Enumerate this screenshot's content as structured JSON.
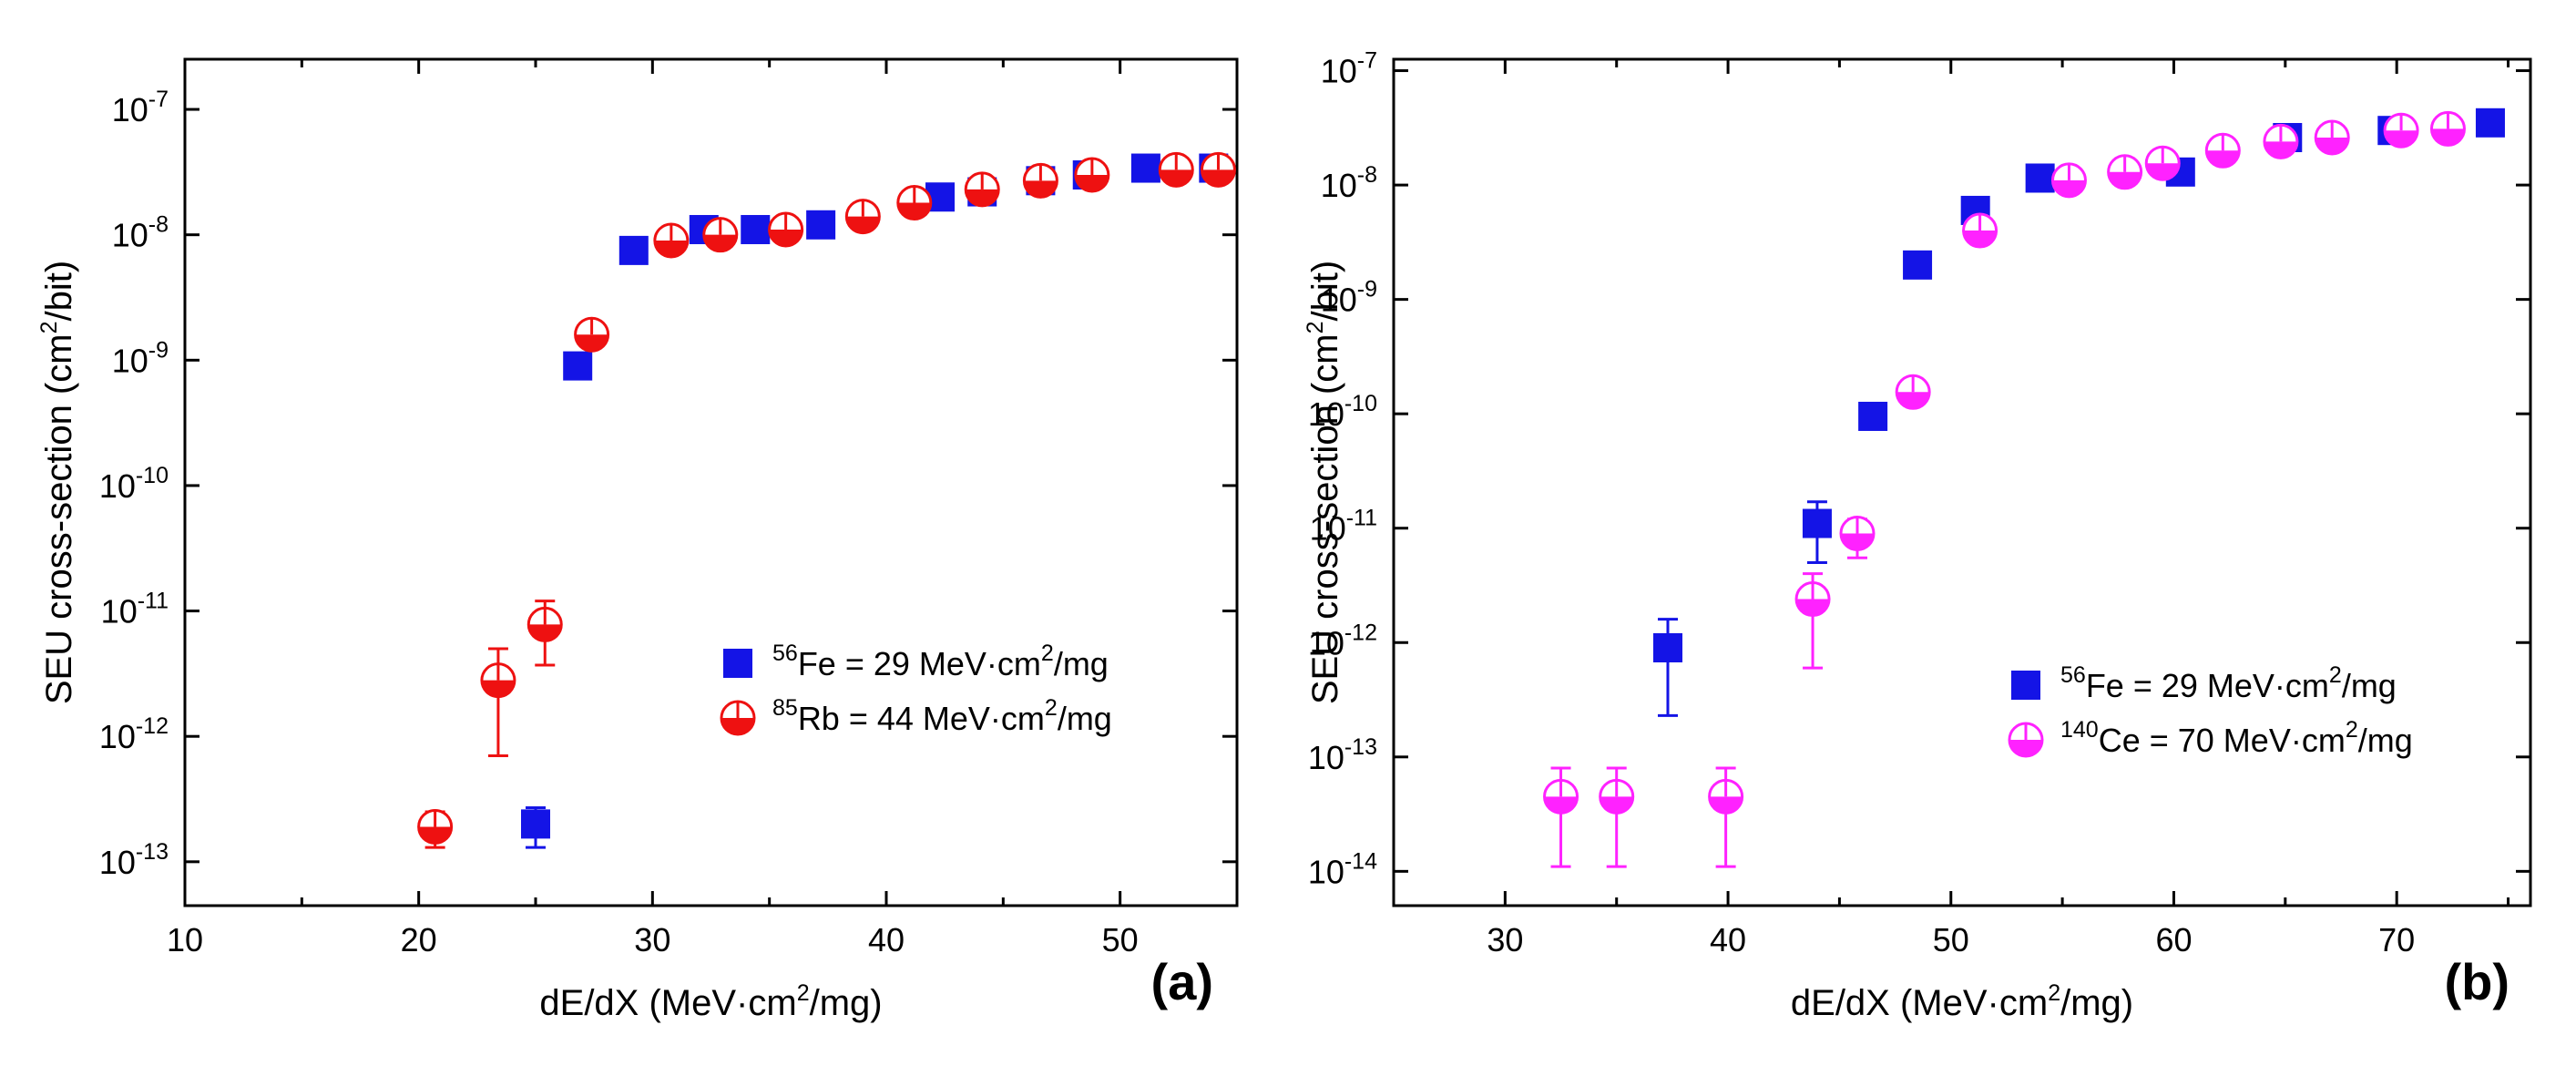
{
  "figure": {
    "panels": [
      "a",
      "b"
    ]
  },
  "chart_data": [
    {
      "type": "scatter",
      "panel_label": "(a)",
      "xlabel": {
        "pre": "dE/dX (MeV·cm",
        "sup": "2",
        "post": "/mg)"
      },
      "ylabel": {
        "pre": "SEU cross-section (cm",
        "sup": "2",
        "post": "/bit)"
      },
      "xlim": [
        10,
        55
      ],
      "ylim_exp": [
        -13.35,
        -6.6
      ],
      "xticks": [
        10,
        20,
        30,
        40,
        50
      ],
      "yticks_exp": [
        -13,
        -12,
        -11,
        -10,
        -9,
        -8,
        -7
      ],
      "log_y": true,
      "legend_position": "right-middle",
      "series": [
        {
          "name": "56Fe",
          "legend": {
            "sup": "56",
            "text": "Fe = 29 MeV·cm",
            "sup2": "2",
            "text2": "/mg"
          },
          "marker": "square",
          "color": "#1414e6",
          "points": [
            {
              "x": 25.0,
              "y": 2e-13,
              "err_low": 1.3e-13,
              "err_high": 2.7e-13
            },
            {
              "x": 26.8,
              "y": 9e-10
            },
            {
              "x": 29.2,
              "y": 7.5e-09
            },
            {
              "x": 32.2,
              "y": 1.1e-08
            },
            {
              "x": 34.4,
              "y": 1.1e-08
            },
            {
              "x": 37.2,
              "y": 1.2e-08
            },
            {
              "x": 42.3,
              "y": 2e-08
            },
            {
              "x": 44.1,
              "y": 2.2e-08
            },
            {
              "x": 46.6,
              "y": 2.7e-08
            },
            {
              "x": 48.6,
              "y": 3e-08
            },
            {
              "x": 51.1,
              "y": 3.4e-08
            },
            {
              "x": 54.0,
              "y": 3.4e-08
            }
          ]
        },
        {
          "name": "85Rb",
          "legend": {
            "sup": "85",
            "text": "Rb = 44 MeV·cm",
            "sup2": "2",
            "text2": "/mg"
          },
          "marker": "half-circle",
          "color": "#ee1111",
          "points": [
            {
              "x": 20.7,
              "y": 1.9e-13,
              "err_low": 1.3e-13,
              "err_high": 2.5e-13
            },
            {
              "x": 23.4,
              "y": 2.8e-12,
              "err_low": 7e-13,
              "err_high": 5e-12
            },
            {
              "x": 25.4,
              "y": 7.8e-12,
              "err_low": 3.7e-12,
              "err_high": 1.2e-11
            },
            {
              "x": 27.4,
              "y": 1.6e-09
            },
            {
              "x": 30.8,
              "y": 9e-09
            },
            {
              "x": 32.9,
              "y": 1e-08
            },
            {
              "x": 35.7,
              "y": 1.1e-08
            },
            {
              "x": 39.0,
              "y": 1.4e-08
            },
            {
              "x": 41.2,
              "y": 1.8e-08
            },
            {
              "x": 44.1,
              "y": 2.3e-08
            },
            {
              "x": 46.6,
              "y": 2.7e-08
            },
            {
              "x": 48.8,
              "y": 3e-08
            },
            {
              "x": 52.4,
              "y": 3.3e-08
            },
            {
              "x": 54.2,
              "y": 3.3e-08
            }
          ]
        }
      ]
    },
    {
      "type": "scatter",
      "panel_label": "(b)",
      "xlabel": {
        "pre": "dE/dX (MeV·cm",
        "sup": "2",
        "post": "/mg)"
      },
      "ylabel": {
        "pre": "SEU cross-section (cm",
        "sup": "2",
        "post": "/bit)"
      },
      "xlim": [
        25,
        76
      ],
      "ylim_exp": [
        -14.3,
        -6.9
      ],
      "xticks": [
        30,
        40,
        50,
        60,
        70
      ],
      "yticks_exp": [
        -14,
        -13,
        -12,
        -11,
        -10,
        -9,
        -8,
        -7
      ],
      "log_y": true,
      "legend_position": "right-middle",
      "series": [
        {
          "name": "56Fe",
          "legend": {
            "sup": "56",
            "text": "Fe = 29 MeV·cm",
            "sup2": "2",
            "text2": "/mg"
          },
          "marker": "square",
          "color": "#1414e6",
          "points": [
            {
              "x": 37.3,
              "y": 9e-13,
              "err_low": 2.3e-13,
              "err_high": 1.6e-12
            },
            {
              "x": 44.0,
              "y": 1.1e-11,
              "err_low": 5e-12,
              "err_high": 1.7e-11
            },
            {
              "x": 46.5,
              "y": 9.5e-11
            },
            {
              "x": 48.5,
              "y": 2e-09
            },
            {
              "x": 51.1,
              "y": 6e-09
            },
            {
              "x": 54.0,
              "y": 1.15e-08
            },
            {
              "x": 60.3,
              "y": 1.3e-08
            },
            {
              "x": 65.1,
              "y": 2.6e-08
            },
            {
              "x": 69.8,
              "y": 3e-08
            },
            {
              "x": 74.2,
              "y": 3.5e-08
            }
          ]
        },
        {
          "name": "140Ce",
          "legend": {
            "sup": "140",
            "text": "Ce = 70 MeV·cm",
            "sup2": "2",
            "text2": "/mg"
          },
          "marker": "half-circle",
          "color": "#ff22ff",
          "points": [
            {
              "x": 32.5,
              "y": 4.5e-14,
              "err_low": 1.1e-14,
              "err_high": 8e-14
            },
            {
              "x": 35.0,
              "y": 4.5e-14,
              "err_low": 1.1e-14,
              "err_high": 8e-14
            },
            {
              "x": 39.9,
              "y": 4.5e-14,
              "err_low": 1.1e-14,
              "err_high": 8e-14
            },
            {
              "x": 43.8,
              "y": 2.4e-12,
              "err_low": 6e-13,
              "err_high": 4e-12
            },
            {
              "x": 45.8,
              "y": 9e-12,
              "err_low": 5.5e-12,
              "err_high": 1.2e-11
            },
            {
              "x": 48.3,
              "y": 1.55e-10
            },
            {
              "x": 51.3,
              "y": 4e-09
            },
            {
              "x": 55.3,
              "y": 1.1e-08
            },
            {
              "x": 57.8,
              "y": 1.3e-08
            },
            {
              "x": 59.5,
              "y": 1.55e-08
            },
            {
              "x": 62.2,
              "y": 2e-08
            },
            {
              "x": 64.8,
              "y": 2.4e-08
            },
            {
              "x": 67.1,
              "y": 2.6e-08
            },
            {
              "x": 70.2,
              "y": 3e-08
            },
            {
              "x": 72.3,
              "y": 3.1e-08
            }
          ]
        }
      ]
    }
  ]
}
